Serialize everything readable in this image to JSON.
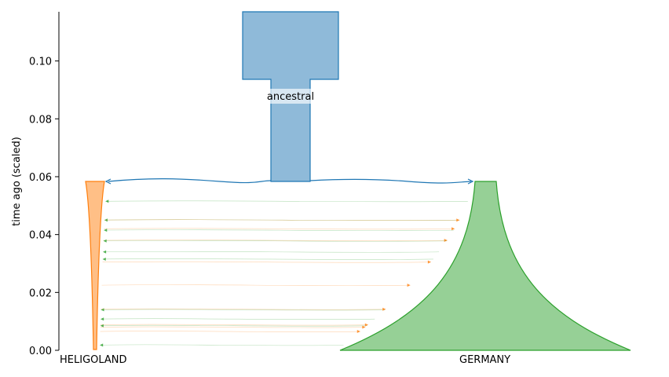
{
  "diagram": {
    "ylabel": "time ago (scaled)",
    "yticks": [
      "0.00",
      "0.02",
      "0.04",
      "0.06",
      "0.08",
      "0.10"
    ],
    "ytick_values": [
      0.0,
      0.02,
      0.04,
      0.06,
      0.08,
      0.1
    ],
    "ylim": [
      0,
      0.117
    ],
    "populations": [
      {
        "name": "ancestral",
        "color": "#1f77b4",
        "fill": "#8fbad9",
        "start_time": 0.058,
        "end_time": 0.117
      },
      {
        "name": "HELIGOLAND",
        "color": "#ff7f0e",
        "fill": "#ffbf86",
        "start_time": 0.0,
        "end_time": 0.058
      },
      {
        "name": "GERMANY",
        "color": "#2ca02c",
        "fill": "#96d096",
        "start_time": 0.0,
        "end_time": 0.058
      }
    ],
    "split_time": 0.058,
    "migrations": [
      {
        "source": "GERMANY",
        "dest": "HELIGOLAND",
        "time": 0.0515
      },
      {
        "source": "GERMANY",
        "dest": "HELIGOLAND",
        "time": 0.045
      },
      {
        "source": "HELIGOLAND",
        "dest": "GERMANY",
        "time": 0.045
      },
      {
        "source": "HELIGOLAND",
        "dest": "GERMANY",
        "time": 0.042
      },
      {
        "source": "GERMANY",
        "dest": "HELIGOLAND",
        "time": 0.0415
      },
      {
        "source": "HELIGOLAND",
        "dest": "GERMANY",
        "time": 0.038
      },
      {
        "source": "GERMANY",
        "dest": "HELIGOLAND",
        "time": 0.0378
      },
      {
        "source": "GERMANY",
        "dest": "HELIGOLAND",
        "time": 0.034
      },
      {
        "source": "GERMANY",
        "dest": "HELIGOLAND",
        "time": 0.0315
      },
      {
        "source": "HELIGOLAND",
        "dest": "GERMANY",
        "time": 0.0305
      },
      {
        "source": "HELIGOLAND",
        "dest": "GERMANY",
        "time": 0.0225
      },
      {
        "source": "GERMANY",
        "dest": "HELIGOLAND",
        "time": 0.014
      },
      {
        "source": "HELIGOLAND",
        "dest": "GERMANY",
        "time": 0.0142
      },
      {
        "source": "GERMANY",
        "dest": "HELIGOLAND",
        "time": 0.0108
      },
      {
        "source": "GERMANY",
        "dest": "HELIGOLAND",
        "time": 0.0085
      },
      {
        "source": "HELIGOLAND",
        "dest": "GERMANY",
        "time": 0.0088
      },
      {
        "source": "HELIGOLAND",
        "dest": "GERMANY",
        "time": 0.008
      },
      {
        "source": "HELIGOLAND",
        "dest": "GERMANY",
        "time": 0.0065
      },
      {
        "source": "GERMANY",
        "dest": "HELIGOLAND",
        "time": 0.0018
      }
    ]
  }
}
